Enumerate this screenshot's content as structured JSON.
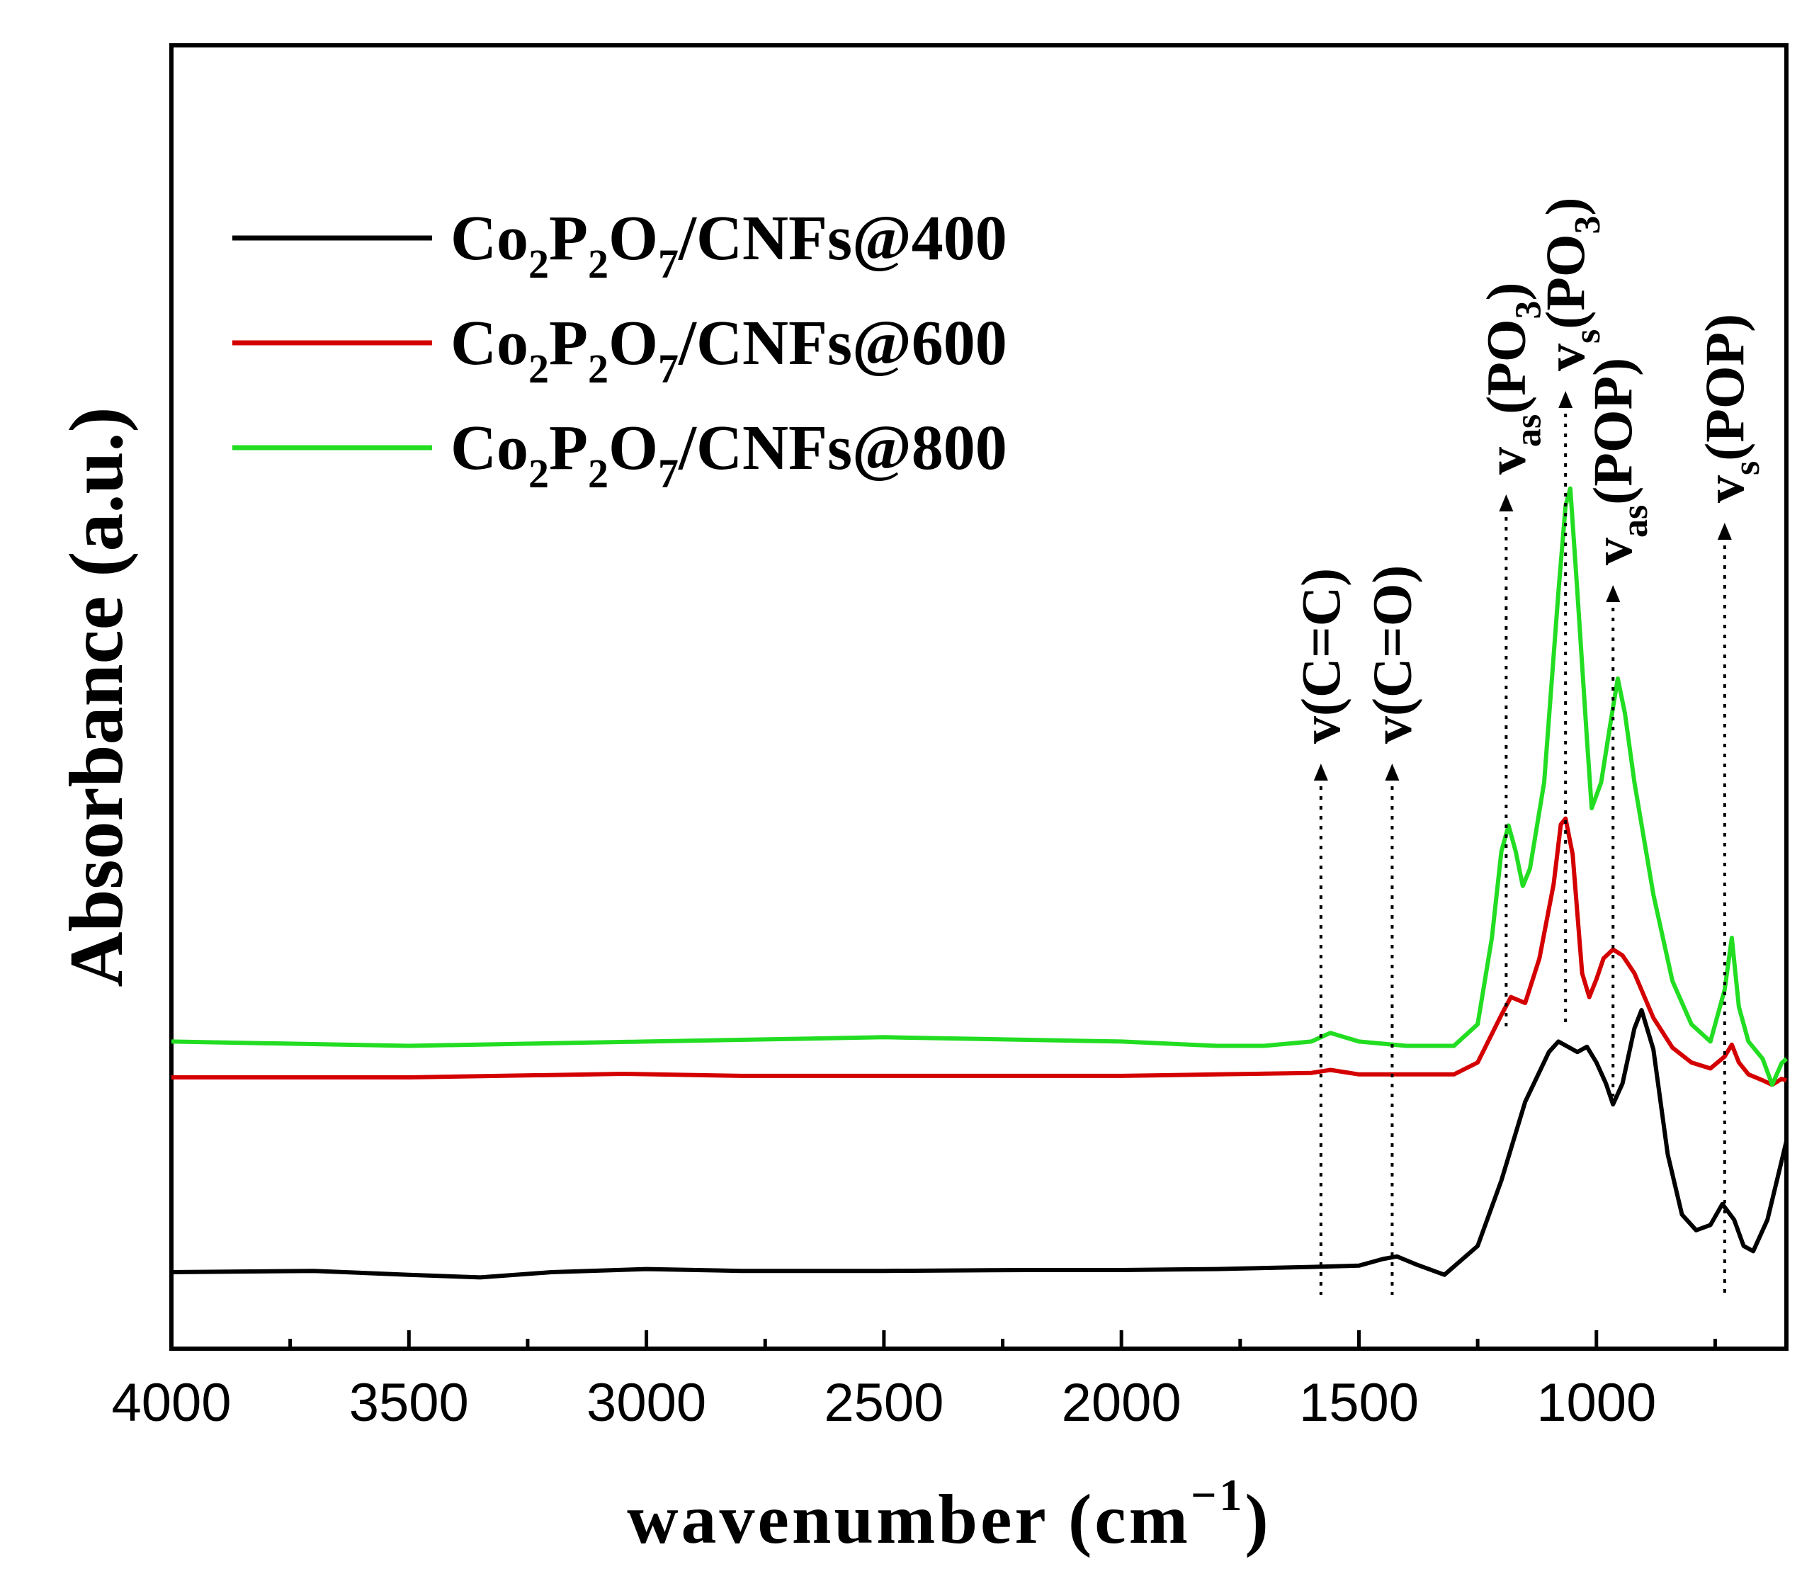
{
  "chart_data": {
    "type": "line",
    "title": "",
    "xlabel": "wavenumber (cm",
    "xlabel_sup": "−1",
    "xlabel_close": ")",
    "ylabel": "Absorbance (a.u.)",
    "xlim": [
      4000,
      600
    ],
    "x_ticks": [
      "4000",
      "3500",
      "3000",
      "2500",
      "2000",
      "1500",
      "1000"
    ],
    "x_tick_values": [
      4000,
      3500,
      3000,
      2500,
      2000,
      1500,
      1000
    ],
    "y_ticks_shown": false,
    "legend_position": "top-left",
    "series": [
      {
        "name": "Co2P2O7/CNFs@400",
        "legend_parts": [
          "Co",
          "2",
          "P",
          "2",
          "O",
          "7",
          "/CNFs@400"
        ],
        "color": "#000000",
        "x": [
          4000,
          3700,
          3500,
          3350,
          3200,
          3000,
          2800,
          2500,
          2200,
          2000,
          1800,
          1600,
          1500,
          1450,
          1420,
          1380,
          1320,
          1250,
          1200,
          1150,
          1100,
          1080,
          1060,
          1040,
          1020,
          1000,
          980,
          965,
          945,
          920,
          905,
          880,
          850,
          820,
          790,
          760,
          735,
          710,
          690,
          670,
          640,
          600
        ],
        "y": [
          0.0,
          0.005,
          -0.01,
          -0.02,
          0.0,
          0.012,
          0.005,
          0.005,
          0.008,
          0.008,
          0.012,
          0.02,
          0.025,
          0.05,
          0.06,
          0.03,
          -0.01,
          0.1,
          0.35,
          0.65,
          0.84,
          0.88,
          0.86,
          0.84,
          0.86,
          0.8,
          0.72,
          0.64,
          0.72,
          0.93,
          1.0,
          0.85,
          0.45,
          0.22,
          0.16,
          0.18,
          0.26,
          0.2,
          0.1,
          0.08,
          0.2,
          0.5
        ]
      },
      {
        "name": "Co2P2O7/CNFs@600",
        "legend_parts": [
          "Co",
          "2",
          "P",
          "2",
          "O",
          "7",
          "/CNFs@600"
        ],
        "color": "#d40000",
        "x": [
          4000,
          3500,
          3050,
          2800,
          2500,
          2000,
          1800,
          1600,
          1560,
          1500,
          1400,
          1300,
          1250,
          1200,
          1180,
          1150,
          1120,
          1090,
          1075,
          1065,
          1050,
          1030,
          1015,
          1000,
          985,
          965,
          945,
          920,
          880,
          840,
          800,
          760,
          730,
          715,
          700,
          680,
          650,
          630,
          610,
          600
        ],
        "y": [
          0.05,
          0.05,
          0.062,
          0.055,
          0.055,
          0.055,
          0.06,
          0.065,
          0.075,
          0.06,
          0.06,
          0.06,
          0.1,
          0.26,
          0.32,
          0.3,
          0.45,
          0.7,
          0.9,
          0.92,
          0.8,
          0.4,
          0.32,
          0.38,
          0.45,
          0.48,
          0.46,
          0.4,
          0.25,
          0.15,
          0.1,
          0.08,
          0.12,
          0.16,
          0.1,
          0.06,
          0.04,
          0.025,
          0.045,
          0.04
        ]
      },
      {
        "name": "Co2P2O7/CNFs@800",
        "legend_parts": [
          "Co",
          "2",
          "P",
          "2",
          "O",
          "7",
          "/CNFs@800"
        ],
        "color": "#22dd22",
        "x": [
          4000,
          3500,
          3000,
          2500,
          2000,
          1800,
          1700,
          1600,
          1560,
          1500,
          1400,
          1300,
          1250,
          1220,
          1200,
          1185,
          1170,
          1155,
          1140,
          1110,
          1080,
          1065,
          1055,
          1040,
          1020,
          1010,
          990,
          970,
          955,
          940,
          920,
          880,
          840,
          800,
          760,
          730,
          715,
          700,
          680,
          650,
          630,
          610,
          600
        ],
        "y": [
          0.68,
          0.675,
          0.68,
          0.685,
          0.68,
          0.675,
          0.675,
          0.68,
          0.69,
          0.68,
          0.675,
          0.675,
          0.7,
          0.8,
          0.9,
          0.93,
          0.9,
          0.86,
          0.88,
          0.98,
          1.2,
          1.3,
          1.32,
          1.2,
          1.03,
          0.95,
          0.98,
          1.05,
          1.1,
          1.06,
          0.98,
          0.85,
          0.75,
          0.7,
          0.68,
          0.74,
          0.8,
          0.72,
          0.68,
          0.66,
          0.63,
          0.655,
          0.66
        ]
      }
    ],
    "annotations": [
      {
        "x": 1580,
        "main": "v",
        "sub": "",
        "group": "(C=C)"
      },
      {
        "x": 1430,
        "main": "v",
        "sub": "",
        "group": "(C=O)"
      },
      {
        "x": 1190,
        "main": "v",
        "sub": "as",
        "group": "(PO3)",
        "group_parts": [
          "(PO",
          "3",
          ")"
        ]
      },
      {
        "x": 1065,
        "main": "v",
        "sub": "s",
        "group": "(PO3)",
        "group_parts": [
          "(PO",
          "3",
          ")"
        ]
      },
      {
        "x": 965,
        "main": "v",
        "sub": "as",
        "group": "(POP)"
      },
      {
        "x": 730,
        "main": "v",
        "sub": "s",
        "group": "(POP)"
      }
    ]
  }
}
